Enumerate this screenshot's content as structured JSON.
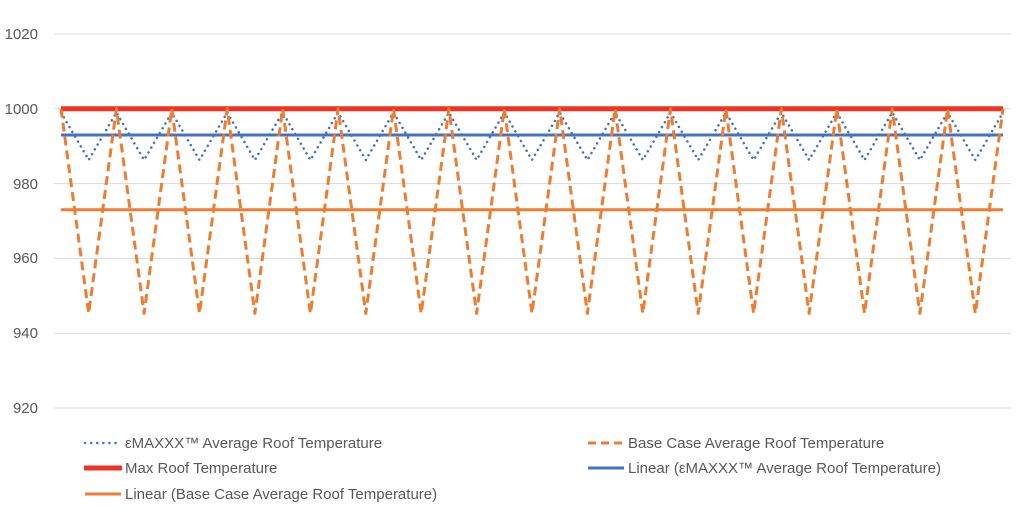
{
  "chart_data": {
    "type": "line",
    "title": "",
    "xlabel": "",
    "ylabel": "",
    "ylim": [
      920,
      1020
    ],
    "yticks": [
      920,
      940,
      960,
      980,
      1000,
      1020
    ],
    "grid": true,
    "legend_position": "bottom",
    "x": [
      1,
      2,
      3,
      4,
      5,
      6,
      7,
      8,
      9,
      10,
      11,
      12,
      13,
      14,
      15,
      16,
      17,
      18,
      19,
      20,
      21,
      22,
      23,
      24,
      25,
      26,
      27,
      28,
      29,
      30,
      31,
      32,
      33,
      34,
      35
    ],
    "series": [
      {
        "name": "εMAXXX™ Average Roof Temperature",
        "style": "dotted",
        "color": "#4472C4",
        "values": [
          999,
          986.3,
          999,
          986.3,
          999,
          986.3,
          999,
          986.3,
          999,
          986.3,
          999,
          986.3,
          999,
          986.3,
          999,
          986.3,
          999,
          986.3,
          999,
          986.3,
          999,
          986.3,
          999,
          986.3,
          999,
          986.3,
          999,
          986.3,
          999,
          986.3,
          999,
          986.3,
          999,
          986.3,
          999
        ]
      },
      {
        "name": "Base Case Average Roof Temperature",
        "style": "dashed",
        "color": "#ED7D31",
        "values": [
          1000,
          945.3,
          1000,
          945.3,
          1000,
          945.3,
          1000,
          945.3,
          1000,
          945.3,
          1000,
          945.3,
          1000,
          945.3,
          1000,
          945.3,
          1000,
          945.3,
          1000,
          945.3,
          1000,
          945.3,
          1000,
          945.3,
          1000,
          945.3,
          1000,
          945.3,
          1000,
          945.3,
          1000,
          945.3,
          1000,
          945.3,
          1000
        ]
      },
      {
        "name": "Max Roof Temperature",
        "style": "solid-thick",
        "color": "#EE3224",
        "values": [
          1000,
          1000,
          1000,
          1000,
          1000,
          1000,
          1000,
          1000,
          1000,
          1000,
          1000,
          1000,
          1000,
          1000,
          1000,
          1000,
          1000,
          1000,
          1000,
          1000,
          1000,
          1000,
          1000,
          1000,
          1000,
          1000,
          1000,
          1000,
          1000,
          1000,
          1000,
          1000,
          1000,
          1000,
          1000
        ]
      },
      {
        "name": "Linear (εMAXXX™ Average Roof Temperature)",
        "style": "solid",
        "color": "#4472C4",
        "values": [
          993,
          993,
          993,
          993,
          993,
          993,
          993,
          993,
          993,
          993,
          993,
          993,
          993,
          993,
          993,
          993,
          993,
          993,
          993,
          993,
          993,
          993,
          993,
          993,
          993,
          993,
          993,
          993,
          993,
          993,
          993,
          993,
          993,
          993,
          993
        ]
      },
      {
        "name": "Linear (Base Case Average Roof Temperature)",
        "style": "solid",
        "color": "#ED7D31",
        "values": [
          973,
          973,
          973,
          973,
          973,
          973,
          973,
          973,
          973,
          973,
          973,
          973,
          973,
          973,
          973,
          973,
          973,
          973,
          973,
          973,
          973,
          973,
          973,
          973,
          973,
          973,
          973,
          973,
          973,
          973,
          973,
          973,
          973,
          973,
          973
        ]
      }
    ]
  },
  "legend": {
    "items": [
      {
        "label": "εMAXXX™ Average Roof Temperature"
      },
      {
        "label": "Base Case Average Roof Temperature"
      },
      {
        "label": "Max Roof Temperature"
      },
      {
        "label": "Linear (εMAXXX™ Average Roof Temperature)"
      },
      {
        "label": "Linear (Base Case Average Roof Temperature)"
      }
    ]
  },
  "axis": {
    "y_labels": [
      "1020",
      "1000",
      "980",
      "960",
      "940",
      "920"
    ]
  }
}
